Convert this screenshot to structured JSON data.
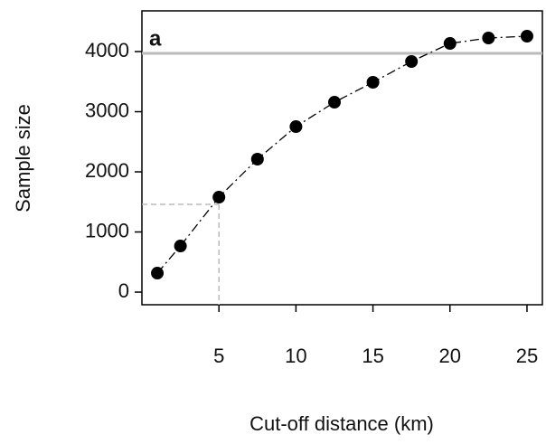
{
  "chart_data": {
    "type": "scatter",
    "panel_label": "a",
    "x_label": "Cut-off distance (km)",
    "y_label": "Sample size",
    "x": [
      1,
      2.5,
      5,
      7.5,
      10,
      12.5,
      15,
      17.5,
      20,
      22.5,
      25
    ],
    "values": [
      316,
      767,
      1579,
      2211,
      2752,
      3158,
      3489,
      3835,
      4135,
      4226,
      4256
    ],
    "color": "#000000",
    "xlim": [
      0,
      26
    ],
    "ylim": [
      -210,
      4677
    ],
    "xticks": [
      5,
      10,
      15,
      20,
      25
    ],
    "yticks": [
      0,
      1000,
      2000,
      3000,
      4000
    ],
    "reference_line": 3970,
    "reference_color": "#bbbbbb",
    "guide_x": 5,
    "guide_y": 1460,
    "guide_color": "#bbbbbb"
  }
}
